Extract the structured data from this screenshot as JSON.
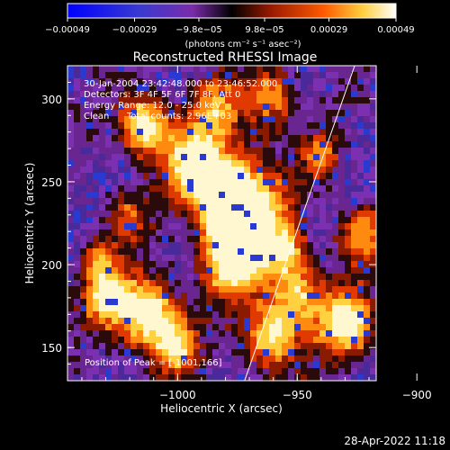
{
  "chart_data": {
    "type": "heatmap",
    "title": "Reconstructed RHESSI Image",
    "xlabel": "Heliocentric X (arcsec)",
    "ylabel": "Heliocentric Y (arcsec)",
    "xlim": [
      -1046,
      -917
    ],
    "ylim": [
      130,
      320
    ],
    "x_ticks": [
      -1000,
      -950,
      -900
    ],
    "x_tick_labels": [
      "−1000",
      "−950",
      "−900"
    ],
    "y_ticks": [
      150,
      200,
      250,
      300
    ],
    "y_tick_labels": [
      "150",
      "200",
      "250",
      "300"
    ],
    "colorbar": {
      "ticks": [
        -0.00049,
        -0.00029,
        -9.8e-05,
        9.8e-05,
        0.00029,
        0.00049
      ],
      "tick_labels": [
        "−0.00049",
        "−0.00029",
        "−9.8e−05",
        "9.8e−05",
        "0.00029",
        "0.00049"
      ],
      "range": [
        -0.00049,
        0.00049
      ],
      "unit_label": "(photons cm⁻² s⁻¹ asec⁻²)"
    },
    "info": {
      "time_range": "30-Jan-2004 23:42:48.000 to 23:46:52.000",
      "detectors": "Detectors: 3F 4F 5F 6F 7F 8F, Att 0",
      "energy": "Energy Range: 12.0 - 25.0 keV",
      "method": "Clean",
      "counts": "Total counts: 2.96E+03"
    },
    "peak_label": "Position of Peak = [-1001,166]",
    "limb_line": [
      [
        -972,
        130
      ],
      [
        -926,
        320
      ]
    ],
    "colors": {
      "background": "#000000",
      "text": "#ffffff",
      "colormap": [
        "#0000ff",
        "#4a2ea0",
        "#7a2caa",
        "#1a0a08",
        "#8a1a00",
        "#ff4a00",
        "#ffd040",
        "#ffffff"
      ]
    }
  },
  "footer": {
    "date_stamp": "28-Apr-2022 11:18"
  }
}
